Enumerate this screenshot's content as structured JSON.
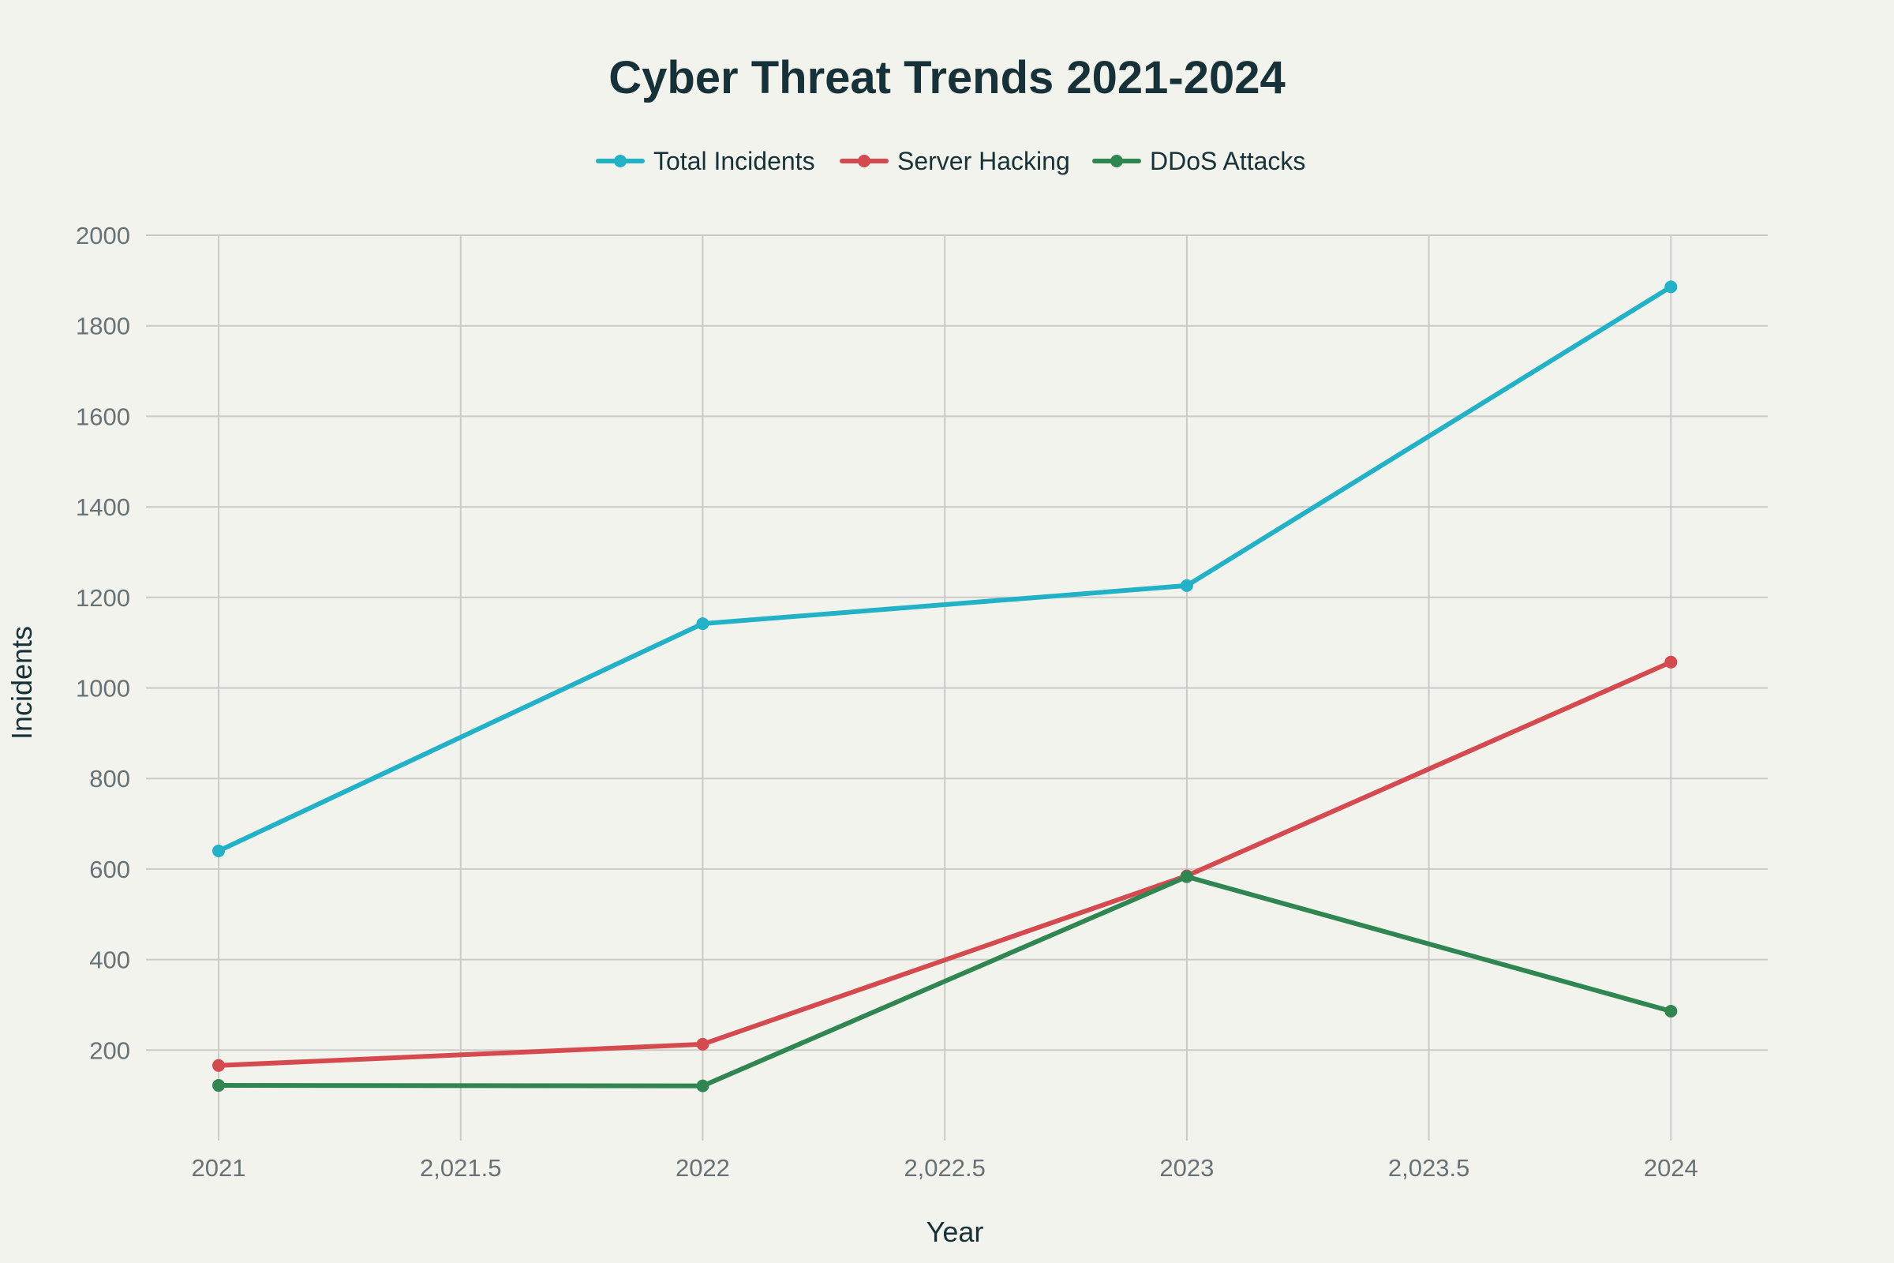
{
  "chart_data": {
    "type": "line",
    "title": "Cyber Threat Trends 2021-2024",
    "xlabel": "Year",
    "ylabel": "Incidents",
    "x": [
      2021,
      2022,
      2023,
      2024
    ],
    "xlim": [
      2020.85,
      2024.2
    ],
    "ylim": [
      0,
      2000
    ],
    "x_ticks": [
      {
        "value": 2021,
        "label": "2021"
      },
      {
        "value": 2021.5,
        "label": "2,021.5"
      },
      {
        "value": 2022,
        "label": "2022"
      },
      {
        "value": 2022.5,
        "label": "2,022.5"
      },
      {
        "value": 2023,
        "label": "2023"
      },
      {
        "value": 2023.5,
        "label": "2,023.5"
      },
      {
        "value": 2024,
        "label": "2024"
      }
    ],
    "y_ticks": [
      {
        "value": 200,
        "label": "200"
      },
      {
        "value": 400,
        "label": "400"
      },
      {
        "value": 600,
        "label": "600"
      },
      {
        "value": 800,
        "label": "800"
      },
      {
        "value": 1000,
        "label": "1000"
      },
      {
        "value": 1200,
        "label": "1200"
      },
      {
        "value": 1400,
        "label": "1400"
      },
      {
        "value": 1600,
        "label": "1600"
      },
      {
        "value": 1800,
        "label": "1800"
      },
      {
        "value": 2000,
        "label": "2000"
      }
    ],
    "grid": true,
    "legend_position": "top-center",
    "series": [
      {
        "name": "Total Incidents",
        "color": "#22b2c7",
        "values": [
          640,
          1142,
          1226,
          1886
        ]
      },
      {
        "name": "Server Hacking",
        "color": "#d44a4f",
        "values": [
          166,
          213,
          585,
          1057
        ]
      },
      {
        "name": "DDoS Attacks",
        "color": "#2f8651",
        "values": [
          122,
          121,
          583,
          286
        ]
      }
    ]
  }
}
